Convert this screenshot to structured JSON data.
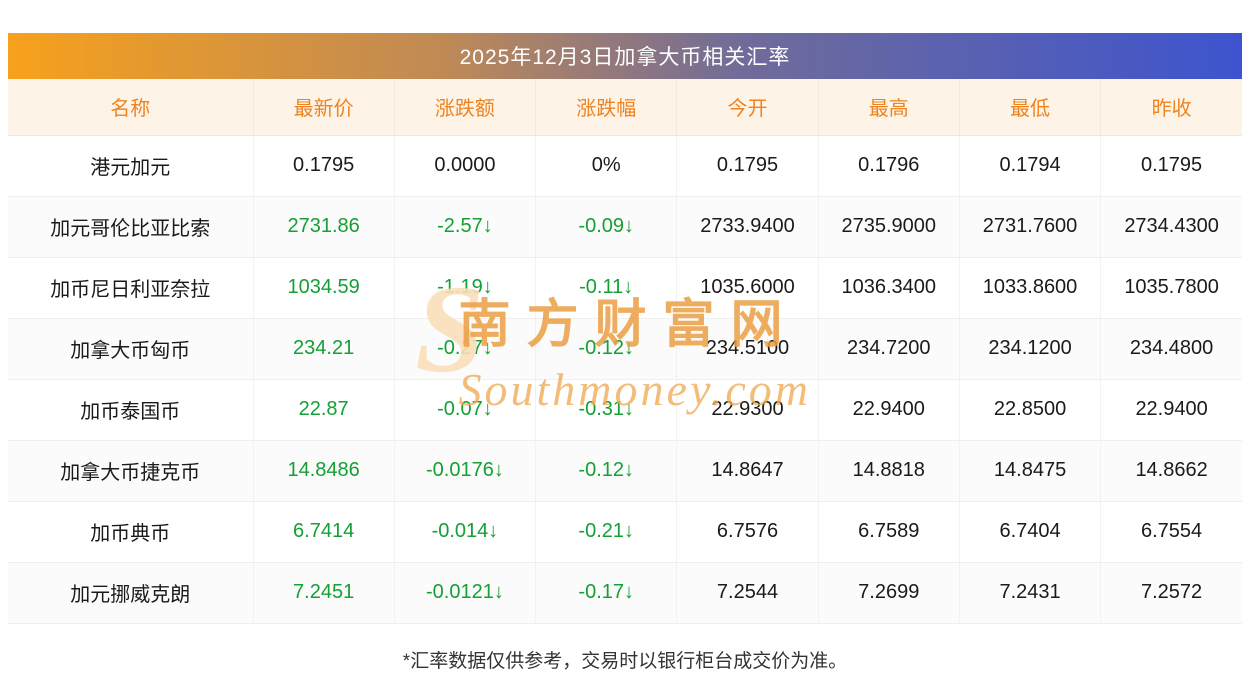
{
  "page": {
    "title": "2025年12月3日加拿大币相关汇率",
    "footer": "*汇率数据仅供参考，交易时以银行柜台成交价为准。"
  },
  "watermark": {
    "logo": "S",
    "cn": "南方财富网",
    "en": "Southmoney.com"
  },
  "colors": {
    "title_gradient_left": "#f7a11c",
    "title_gradient_right": "#3e54cf",
    "header_bg": "#fdf4e7",
    "header_text": "#ef8320",
    "value_down_green": "#14a034",
    "value_neutral": "#1a1a1a"
  },
  "chart_data": {
    "type": "table",
    "title": "2025年12月3日加拿大币相关汇率",
    "columns": [
      "名称",
      "最新价",
      "涨跌额",
      "涨跌幅",
      "今开",
      "最高",
      "最低",
      "昨收"
    ],
    "rows": [
      {
        "cells": [
          "港元加元",
          "0.1795",
          "0.0000",
          "0%",
          "0.1795",
          "0.1796",
          "0.1794",
          "0.1795"
        ],
        "trend": "flat"
      },
      {
        "cells": [
          "加元哥伦比亚比索",
          "2731.86",
          "-2.57↓",
          "-0.09↓",
          "2733.9400",
          "2735.9000",
          "2731.7600",
          "2734.4300"
        ],
        "trend": "down"
      },
      {
        "cells": [
          "加币尼日利亚奈拉",
          "1034.59",
          "-1.19↓",
          "-0.11↓",
          "1035.6000",
          "1036.3400",
          "1033.8600",
          "1035.7800"
        ],
        "trend": "down"
      },
      {
        "cells": [
          "加拿大币匈币",
          "234.21",
          "-0.27↓",
          "-0.12↓",
          "234.5100",
          "234.7200",
          "234.1200",
          "234.4800"
        ],
        "trend": "down"
      },
      {
        "cells": [
          "加币泰国币",
          "22.87",
          "-0.07↓",
          "-0.31↓",
          "22.9300",
          "22.9400",
          "22.8500",
          "22.9400"
        ],
        "trend": "down"
      },
      {
        "cells": [
          "加拿大币捷克币",
          "14.8486",
          "-0.0176↓",
          "-0.12↓",
          "14.8647",
          "14.8818",
          "14.8475",
          "14.8662"
        ],
        "trend": "down"
      },
      {
        "cells": [
          "加币典币",
          "6.7414",
          "-0.014↓",
          "-0.21↓",
          "6.7576",
          "6.7589",
          "6.7404",
          "6.7554"
        ],
        "trend": "down"
      },
      {
        "cells": [
          "加元挪威克朗",
          "7.2451",
          "-0.0121↓",
          "-0.17↓",
          "7.2544",
          "7.2699",
          "7.2431",
          "7.2572"
        ],
        "trend": "down"
      }
    ]
  }
}
